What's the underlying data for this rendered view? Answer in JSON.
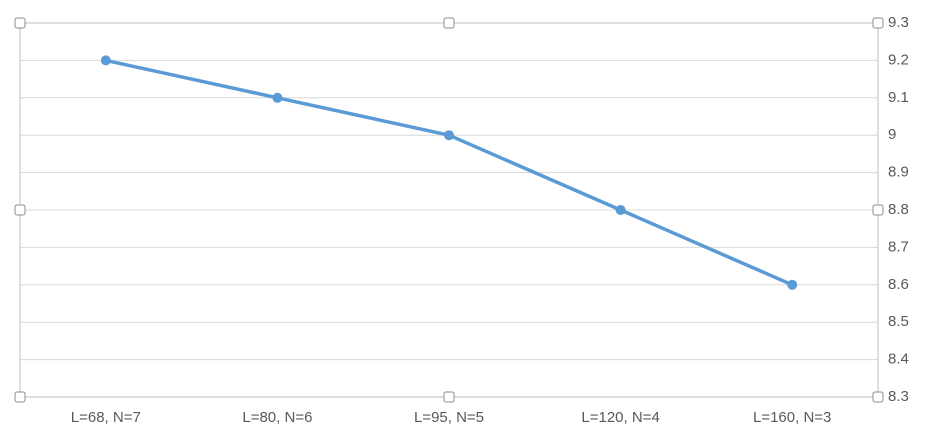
{
  "chart_data": {
    "type": "line",
    "categories": [
      "L=68, N=7",
      "L=80, N=6",
      "L=95, N=5",
      "L=120, N=4",
      "L=160, N=3"
    ],
    "series": [
      {
        "name": null,
        "color": "#5b9bd5",
        "values": [
          9.2,
          9.1,
          9.0,
          8.8,
          8.6
        ]
      }
    ],
    "ylim": [
      8.3,
      9.3
    ],
    "yticks": [
      8.3,
      8.4,
      8.5,
      8.6,
      8.7,
      8.8,
      8.9,
      9,
      9.1,
      9.2,
      9.3
    ],
    "grid": true,
    "y_axis_side": "right"
  }
}
